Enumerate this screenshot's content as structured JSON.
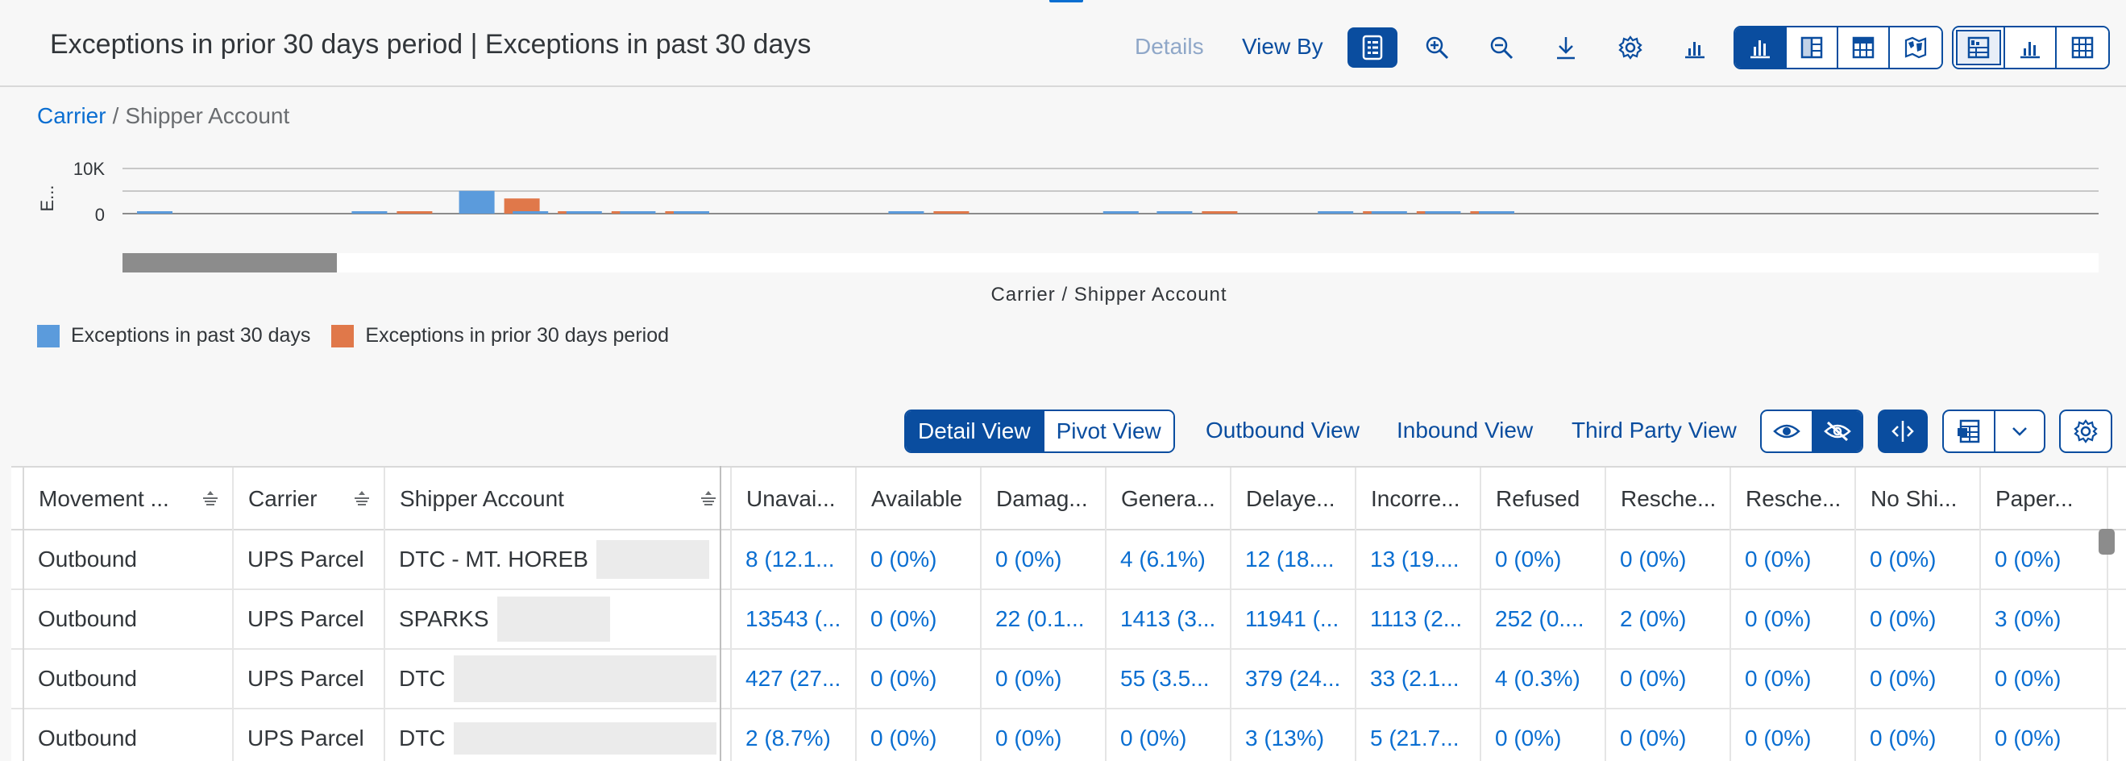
{
  "header": {
    "title": "Exceptions in prior 30 days period | Exceptions in past 30 days",
    "details_label": "Details",
    "view_by_label": "View By"
  },
  "toolbar_icons": [
    "legend-icon",
    "zoom-in-icon",
    "zoom-out-icon",
    "download-icon",
    "settings-icon",
    "chart-type-icon"
  ],
  "chart_type_icons": [
    "column-chart-icon",
    "table-columns-icon",
    "grid-icon",
    "map-icon"
  ],
  "display_mode_icons": [
    "chart-and-table-icon",
    "chart-only-icon",
    "table-only-icon"
  ],
  "breadcrumb": {
    "root": "Carrier",
    "separator": "/",
    "current": "Shipper Account"
  },
  "colors": {
    "past": "#5b9bdc",
    "prior": "#e0784a",
    "accent": "#0a4d9f",
    "link": "#0a6ed1"
  },
  "chart_data": {
    "type": "bar",
    "ylabel": "E...",
    "xlabel": "Carrier / Shipper Account",
    "y_ticks": [
      "10K",
      "0"
    ],
    "ylim": [
      0,
      10000
    ],
    "legend_position": "bottom-left",
    "grid": true,
    "series": [
      {
        "name": "Exceptions in past 30 days",
        "values": [
          300,
          0,
          0,
          0,
          300,
          0,
          4200,
          300,
          300,
          300,
          300,
          0,
          0,
          0,
          300,
          0,
          0,
          0,
          300,
          300,
          0,
          0,
          300,
          300,
          300,
          300
        ]
      },
      {
        "name": "Exceptions in prior 30 days period",
        "values": [
          0,
          0,
          0,
          0,
          300,
          0,
          2800,
          300,
          300,
          300,
          0,
          0,
          0,
          0,
          300,
          0,
          0,
          0,
          0,
          300,
          0,
          0,
          300,
          300,
          300,
          0
        ]
      }
    ]
  },
  "legend": {
    "past": "Exceptions in past 30 days",
    "prior": "Exceptions in prior 30 days period"
  },
  "views": {
    "detail": "Detail View",
    "pivot": "Pivot View",
    "outbound": "Outbound View",
    "inbound": "Inbound View",
    "third_party": "Third Party View"
  },
  "table": {
    "columns": [
      "Movement ...",
      "Carrier",
      "Shipper Account",
      "Unavai...",
      "Available",
      "Damag...",
      "Genera...",
      "Delaye...",
      "Incorre...",
      "Refused",
      "Resche...",
      "Resche...",
      "No Shi...",
      "Paper..."
    ],
    "rows": [
      [
        "Outbound",
        "UPS Parcel",
        "DTC - MT. HOREB",
        "8 (12.1...",
        "0 (0%)",
        "0 (0%)",
        "4 (6.1%)",
        "12 (18....",
        "13 (19....",
        "0 (0%)",
        "0 (0%)",
        "0 (0%)",
        "0 (0%)",
        "0 (0%)"
      ],
      [
        "Outbound",
        "UPS Parcel",
        "SPARKS",
        "13543 (...",
        "0 (0%)",
        "22 (0.1...",
        "1413 (3...",
        "11941 (...",
        "1113 (2...",
        "252 (0....",
        "2 (0%)",
        "0 (0%)",
        "0 (0%)",
        "3 (0%)"
      ],
      [
        "Outbound",
        "UPS Parcel",
        "DTC",
        "427 (27...",
        "0 (0%)",
        "0 (0%)",
        "55 (3.5...",
        "379 (24...",
        "33 (2.1...",
        "4 (0.3%)",
        "0 (0%)",
        "0 (0%)",
        "0 (0%)",
        "0 (0%)"
      ],
      [
        "Outbound",
        "UPS Parcel",
        "DTC",
        "2 (8.7%)",
        "0 (0%)",
        "0 (0%)",
        "0 (0%)",
        "3 (13%)",
        "5 (21.7...",
        "0 (0%)",
        "0 (0%)",
        "0 (0%)",
        "0 (0%)",
        "0 (0%)"
      ]
    ]
  }
}
